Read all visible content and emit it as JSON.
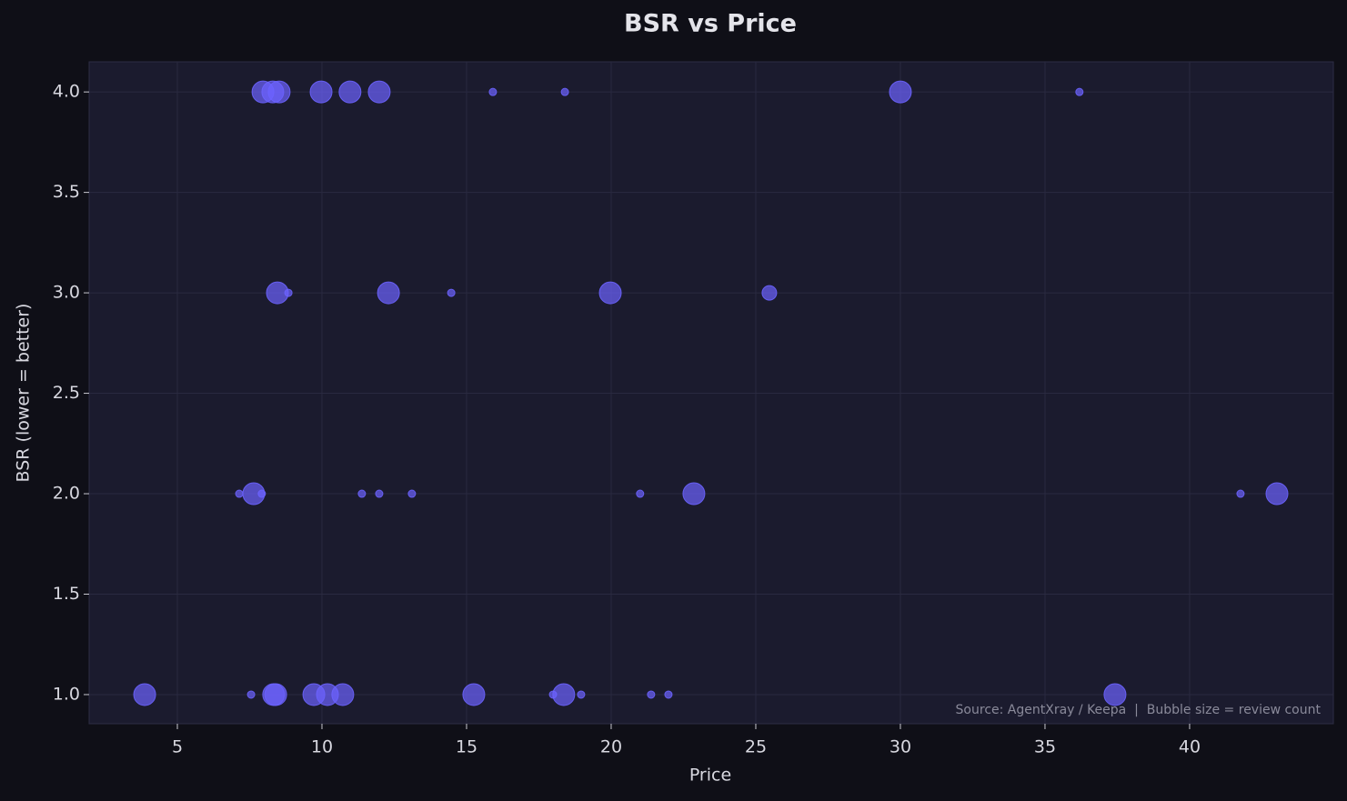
{
  "chart_data": {
    "type": "scatter",
    "title": "BSR vs Price",
    "x_label": "Price",
    "y_label": "BSR (lower = better)",
    "annotation": "Source: AgentXray / Keepa  |  Bubble size = review count",
    "color": "#6c63ff",
    "x": [
      7.96,
      8.3,
      8.52,
      9.97,
      10.97,
      11.98,
      15.91,
      18.4,
      30.0,
      36.19,
      8.46,
      8.84,
      12.3,
      14.47,
      19.97,
      25.47,
      7.14,
      7.64,
      7.92,
      11.38,
      11.98,
      13.11,
      21.0,
      22.86,
      41.76,
      43.02,
      3.87,
      7.55,
      8.33,
      8.4,
      9.72,
      10.19,
      10.72,
      15.25,
      17.99,
      18.36,
      18.96,
      21.38,
      21.98,
      37.42
    ],
    "values": [
      4,
      4,
      4,
      4,
      4,
      4,
      4,
      4,
      4,
      4,
      3,
      3,
      3,
      3,
      3,
      3,
      2,
      2,
      2,
      2,
      2,
      2,
      2,
      2,
      2,
      2,
      1,
      1,
      1,
      1,
      1,
      1,
      1,
      1,
      1,
      1,
      1,
      1,
      1,
      1
    ],
    "sizes": [
      144,
      144,
      144,
      144,
      144,
      144,
      16,
      16,
      144,
      16,
      144,
      16,
      144,
      16,
      144,
      64,
      16,
      144,
      16,
      16,
      16,
      16,
      16,
      144,
      16,
      144,
      144,
      16,
      144,
      144,
      144,
      144,
      144,
      144,
      16,
      144,
      16,
      16,
      16,
      144
    ],
    "xlim": [
      1.95,
      44.97
    ],
    "ylim": [
      0.855,
      4.15
    ],
    "xticks": [
      5,
      10,
      15,
      20,
      25,
      30,
      35,
      40
    ],
    "yticks": [
      {
        "value": 1,
        "label": "1.0"
      },
      1.5,
      {
        "value": 2,
        "label": "2.0"
      },
      2.5,
      {
        "value": 3,
        "label": "3.0"
      },
      3.5,
      {
        "value": 4,
        "label": "4.0"
      }
    ],
    "grid": true
  }
}
